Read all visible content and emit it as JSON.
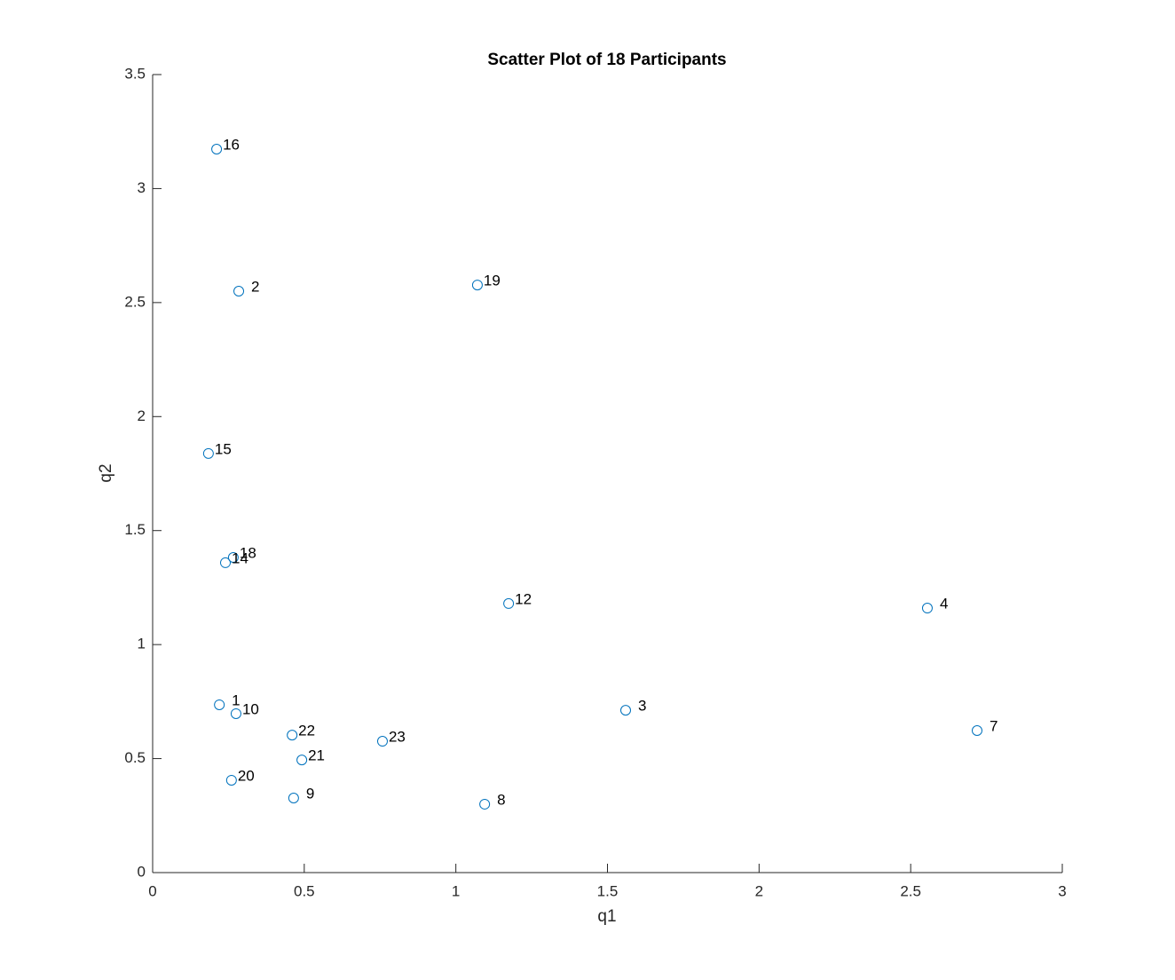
{
  "chart_data": {
    "type": "scatter",
    "title": "Scatter Plot of 18 Participants",
    "xlabel": "q1",
    "ylabel": "q2",
    "series": [
      {
        "color": "#0072bd",
        "x": [
          0.211,
          0.284,
          1.071,
          0.184,
          0.266,
          0.24,
          1.174,
          2.555,
          0.22,
          0.275,
          1.56,
          2.719,
          0.46,
          0.758,
          0.492,
          0.26,
          0.465,
          1.095
        ],
        "values": [
          3.173,
          2.55,
          2.577,
          1.838,
          1.382,
          1.359,
          1.18,
          1.16,
          0.736,
          0.697,
          0.712,
          0.623,
          0.603,
          0.576,
          0.494,
          0.405,
          0.327,
          0.3
        ],
        "point_labels": [
          "16",
          "2",
          "19",
          "15",
          "18",
          "14",
          "12",
          "4",
          "1",
          "10",
          "3",
          "7",
          "22",
          "23",
          "21",
          "20",
          "9",
          "8"
        ]
      }
    ],
    "xlim": [
      0,
      3
    ],
    "xticks": [
      0,
      0.5,
      1,
      1.5,
      2,
      2.5,
      3
    ],
    "ylim": [
      0,
      3.5
    ],
    "yticks": [
      0,
      0.5,
      1,
      1.5,
      2,
      2.5,
      3,
      3.5
    ]
  }
}
